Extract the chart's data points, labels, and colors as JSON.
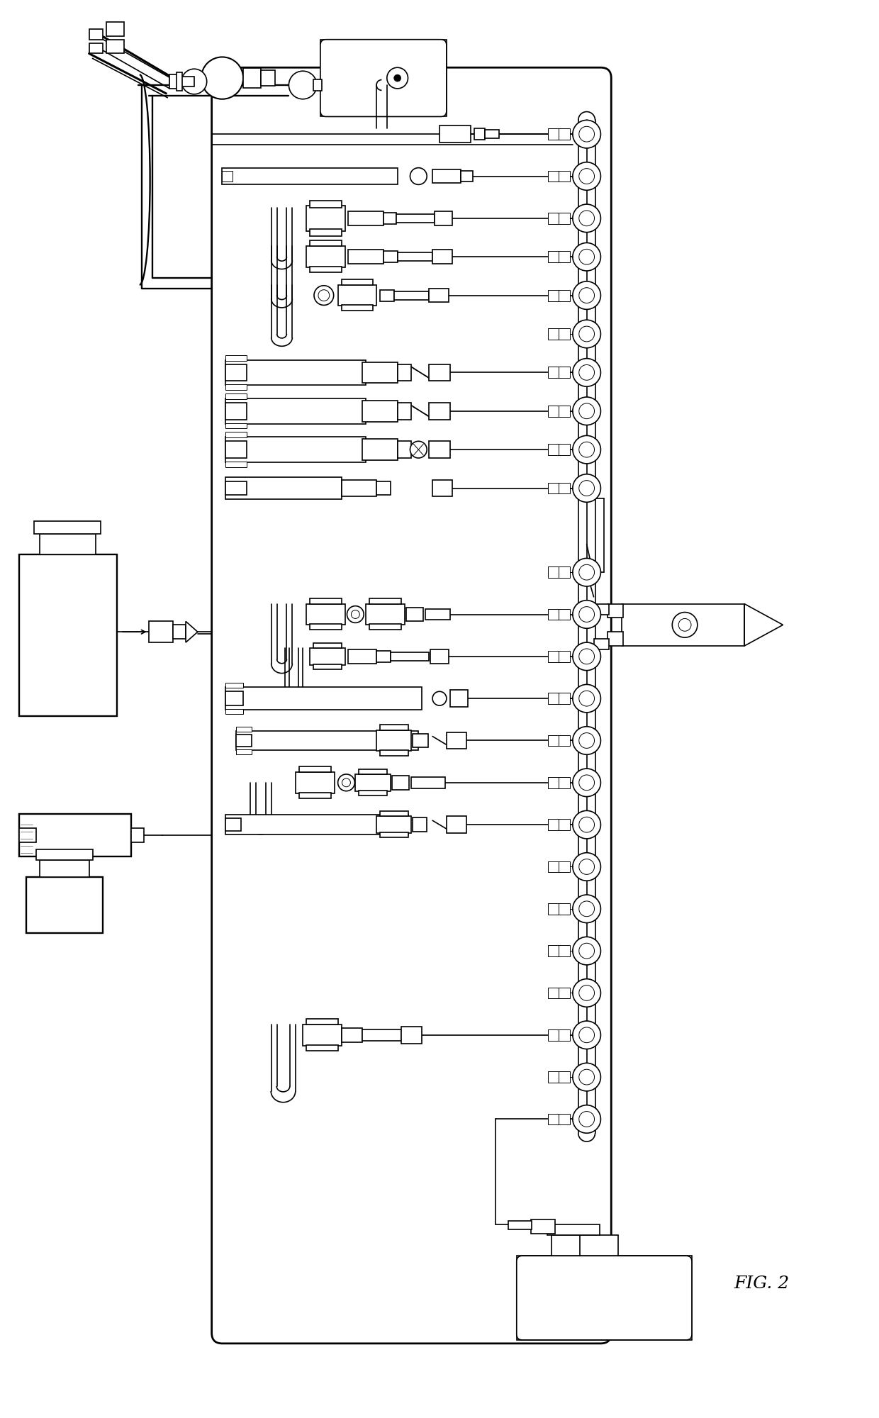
{
  "title": "FIG. 2",
  "bg_color": "#ffffff",
  "lw": 1.2,
  "lw_thick": 2.0,
  "lw_thin": 0.7
}
